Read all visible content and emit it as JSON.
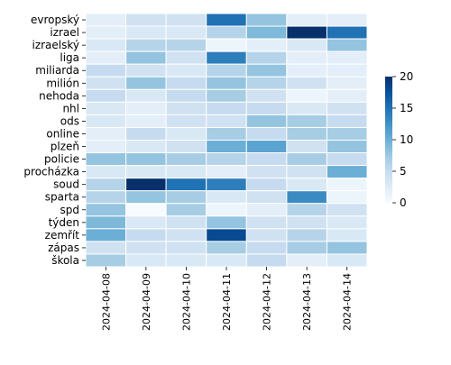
{
  "chart_data": {
    "type": "heatmap",
    "title": "",
    "xlabel": "",
    "ylabel": "",
    "x": [
      "2024-04-08",
      "2024-04-09",
      "2024-04-10",
      "2024-04-11",
      "2024-04-12",
      "2024-04-13",
      "2024-04-14"
    ],
    "y": [
      "evropský",
      "izrael",
      "izraelský",
      "liga",
      "miliarda",
      "milión",
      "nehoda",
      "nhl",
      "ods",
      "online",
      "plzeň",
      "policie",
      "procházka",
      "soud",
      "sparta",
      "spd",
      "týden",
      "zemřít",
      "zápas",
      "škola"
    ],
    "values": [
      [
        2,
        4,
        4,
        15,
        8,
        2,
        2
      ],
      [
        2,
        3,
        3,
        6,
        9,
        20,
        15
      ],
      [
        3,
        6,
        6,
        1,
        2,
        3,
        8
      ],
      [
        2,
        8,
        4,
        14,
        6,
        2,
        2
      ],
      [
        5,
        4,
        3,
        6,
        8,
        2,
        2
      ],
      [
        4,
        8,
        5,
        8,
        6,
        4,
        2
      ],
      [
        5,
        3,
        5,
        7,
        4,
        1,
        2
      ],
      [
        3,
        2,
        4,
        5,
        5,
        3,
        4
      ],
      [
        3,
        2,
        4,
        4,
        8,
        7,
        5
      ],
      [
        2,
        5,
        3,
        7,
        5,
        7,
        7
      ],
      [
        2,
        3,
        4,
        10,
        11,
        4,
        8
      ],
      [
        8,
        8,
        7,
        6,
        5,
        7,
        5
      ],
      [
        3,
        3,
        3,
        2,
        4,
        4,
        10
      ],
      [
        6,
        20,
        15,
        14,
        5,
        3,
        1
      ],
      [
        6,
        8,
        7,
        3,
        4,
        13,
        1
      ],
      [
        8,
        0,
        7,
        1,
        2,
        6,
        4
      ],
      [
        9,
        3,
        4,
        8,
        4,
        4,
        3
      ],
      [
        10,
        5,
        4,
        18,
        4,
        6,
        3
      ],
      [
        4,
        4,
        4,
        7,
        5,
        7,
        8
      ],
      [
        7,
        3,
        3,
        3,
        5,
        2,
        3
      ]
    ],
    "zlim": [
      0,
      20
    ],
    "colorbar_ticks": [
      0,
      5,
      10,
      15,
      20
    ],
    "colormap": "Blues",
    "grid": "white cell borders",
    "colorbar_position": "right"
  }
}
